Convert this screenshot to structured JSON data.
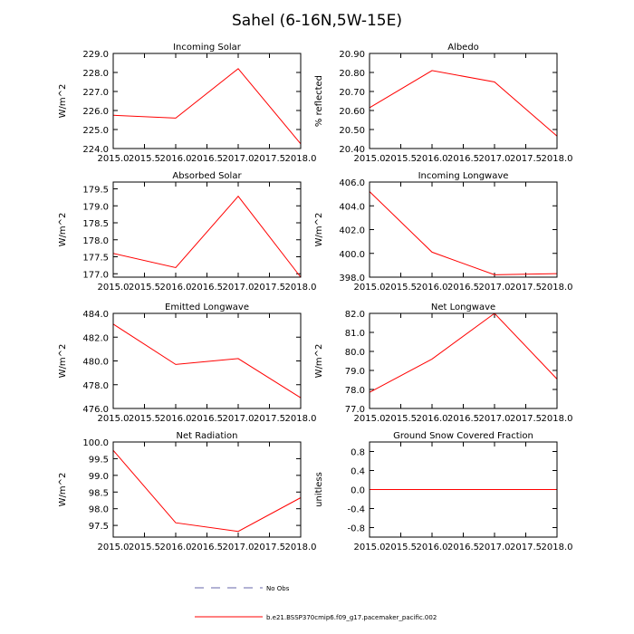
{
  "figure": {
    "title": "Sahel (6-16N,5W-15E)"
  },
  "legend": {
    "obs_label": "No Obs",
    "model_label": "b.e21.BSSP370cmip6.f09_g17.pacemaker_pacific.002",
    "obs_color": "#6666aa",
    "model_color": "#ff0000"
  },
  "chart_data": [
    {
      "type": "line",
      "title": "Incoming Solar",
      "ylabel": "W/m^2",
      "x": [
        2015,
        2016,
        2017,
        2018
      ],
      "values": [
        225.75,
        225.6,
        228.2,
        224.25
      ],
      "xlim": [
        2015,
        2018
      ],
      "ylim": [
        224,
        229
      ],
      "xticks": [
        2015.0,
        2015.5,
        2016.0,
        2016.5,
        2017.0,
        2017.5,
        2018.0
      ],
      "xtick_labels": [
        "2015.0",
        "2015.5",
        "2016.0",
        "2016.5",
        "2017.0",
        "2017.5",
        "2018.0"
      ],
      "yticks": [
        224,
        225,
        226,
        227,
        228,
        229
      ],
      "ytick_labels": [
        "224.0",
        "225.0",
        "226.0",
        "227.0",
        "228.0",
        "229.0"
      ]
    },
    {
      "type": "line",
      "title": "Albedo",
      "ylabel": "% reflected",
      "x": [
        2015,
        2016,
        2017,
        2018
      ],
      "values": [
        20.615,
        20.81,
        20.75,
        20.465
      ],
      "xlim": [
        2015,
        2018
      ],
      "ylim": [
        20.4,
        20.9
      ],
      "xticks": [
        2015.0,
        2015.5,
        2016.0,
        2016.5,
        2017.0,
        2017.5,
        2018.0
      ],
      "xtick_labels": [
        "2015.0",
        "2015.5",
        "2016.0",
        "2016.5",
        "2017.0",
        "2017.5",
        "2018.0"
      ],
      "yticks": [
        20.4,
        20.5,
        20.6,
        20.7,
        20.8,
        20.9
      ],
      "ytick_labels": [
        "20.40",
        "20.50",
        "20.60",
        "20.70",
        "20.80",
        "20.90"
      ]
    },
    {
      "type": "line",
      "title": "Absorbed Solar",
      "ylabel": "W/m^2",
      "x": [
        2015,
        2016,
        2017,
        2018
      ],
      "values": [
        177.6,
        177.18,
        179.28,
        176.9
      ],
      "xlim": [
        2015,
        2018
      ],
      "ylim": [
        176.9,
        179.7
      ],
      "xticks": [
        2015.0,
        2015.5,
        2016.0,
        2016.5,
        2017.0,
        2017.5,
        2018.0
      ],
      "xtick_labels": [
        "2015.0",
        "2015.5",
        "2016.0",
        "2016.5",
        "2017.0",
        "2017.5",
        "2018.0"
      ],
      "yticks": [
        177.0,
        177.5,
        178.0,
        178.5,
        179.0,
        179.5
      ],
      "ytick_labels": [
        "177.0",
        "177.5",
        "178.0",
        "178.5",
        "179.0",
        "179.5"
      ]
    },
    {
      "type": "line",
      "title": "Incoming Longwave",
      "ylabel": "W/m^2",
      "x": [
        2015,
        2016,
        2017,
        2018
      ],
      "values": [
        405.2,
        400.1,
        398.2,
        398.3
      ],
      "xlim": [
        2015,
        2018
      ],
      "ylim": [
        398,
        406
      ],
      "xticks": [
        2015.0,
        2015.5,
        2016.0,
        2016.5,
        2017.0,
        2017.5,
        2018.0
      ],
      "xtick_labels": [
        "2015.0",
        "2015.5",
        "2016.0",
        "2016.5",
        "2017.0",
        "2017.5",
        "2018.0"
      ],
      "yticks": [
        398,
        400,
        402,
        404,
        406
      ],
      "ytick_labels": [
        "398.0",
        "400.0",
        "402.0",
        "404.0",
        "406.0"
      ]
    },
    {
      "type": "line",
      "title": "Emitted Longwave",
      "ylabel": "W/m^2",
      "x": [
        2015,
        2016,
        2017,
        2018
      ],
      "values": [
        483.1,
        479.7,
        480.2,
        476.9
      ],
      "xlim": [
        2015,
        2018
      ],
      "ylim": [
        476,
        484
      ],
      "xticks": [
        2015.0,
        2015.5,
        2016.0,
        2016.5,
        2017.0,
        2017.5,
        2018.0
      ],
      "xtick_labels": [
        "2015.0",
        "2015.5",
        "2016.0",
        "2016.5",
        "2017.0",
        "2017.5",
        "2018.0"
      ],
      "yticks": [
        476,
        478,
        480,
        482,
        484
      ],
      "ytick_labels": [
        "476.0",
        "478.0",
        "480.0",
        "482.0",
        "484.0"
      ]
    },
    {
      "type": "line",
      "title": "Net Longwave",
      "ylabel": "W/m^2",
      "x": [
        2015,
        2016,
        2017,
        2018
      ],
      "values": [
        77.85,
        79.6,
        82.0,
        78.55
      ],
      "xlim": [
        2015,
        2018
      ],
      "ylim": [
        77,
        82
      ],
      "xticks": [
        2015.0,
        2015.5,
        2016.0,
        2016.5,
        2017.0,
        2017.5,
        2018.0
      ],
      "xtick_labels": [
        "2015.0",
        "2015.5",
        "2016.0",
        "2016.5",
        "2017.0",
        "2017.5",
        "2018.0"
      ],
      "yticks": [
        77,
        78,
        79,
        80,
        81,
        82
      ],
      "ytick_labels": [
        "77.0",
        "78.0",
        "79.0",
        "80.0",
        "81.0",
        "82.0"
      ]
    },
    {
      "type": "line",
      "title": "Net Radiation",
      "ylabel": "W/m^2",
      "x": [
        2015,
        2016,
        2017,
        2018
      ],
      "values": [
        99.75,
        97.58,
        97.32,
        98.33
      ],
      "xlim": [
        2015,
        2018
      ],
      "ylim": [
        97.15,
        100.0
      ],
      "xticks": [
        2015.0,
        2015.5,
        2016.0,
        2016.5,
        2017.0,
        2017.5,
        2018.0
      ],
      "xtick_labels": [
        "2015.0",
        "2015.5",
        "2016.0",
        "2016.5",
        "2017.0",
        "2017.5",
        "2018.0"
      ],
      "yticks": [
        97.5,
        98.0,
        98.5,
        99.0,
        99.5,
        100.0
      ],
      "ytick_labels": [
        "97.5",
        "98.0",
        "98.5",
        "99.0",
        "99.5",
        "100.0"
      ]
    },
    {
      "type": "line",
      "title": "Ground Snow Covered Fraction",
      "ylabel": "unitless",
      "x": [
        2015,
        2016,
        2017,
        2018
      ],
      "values": [
        0,
        0,
        0,
        0
      ],
      "xlim": [
        2015,
        2018
      ],
      "ylim": [
        -1.0,
        1.0
      ],
      "xticks": [
        2015.0,
        2015.5,
        2016.0,
        2016.5,
        2017.0,
        2017.5,
        2018.0
      ],
      "xtick_labels": [
        "2015.0",
        "2015.5",
        "2016.0",
        "2016.5",
        "2017.0",
        "2017.5",
        "2018.0"
      ],
      "yticks": [
        -0.8,
        -0.4,
        0.0,
        0.4,
        0.8
      ],
      "ytick_labels": [
        "-0.8",
        "-0.4",
        "0.0",
        "0.4",
        "0.8"
      ]
    }
  ]
}
